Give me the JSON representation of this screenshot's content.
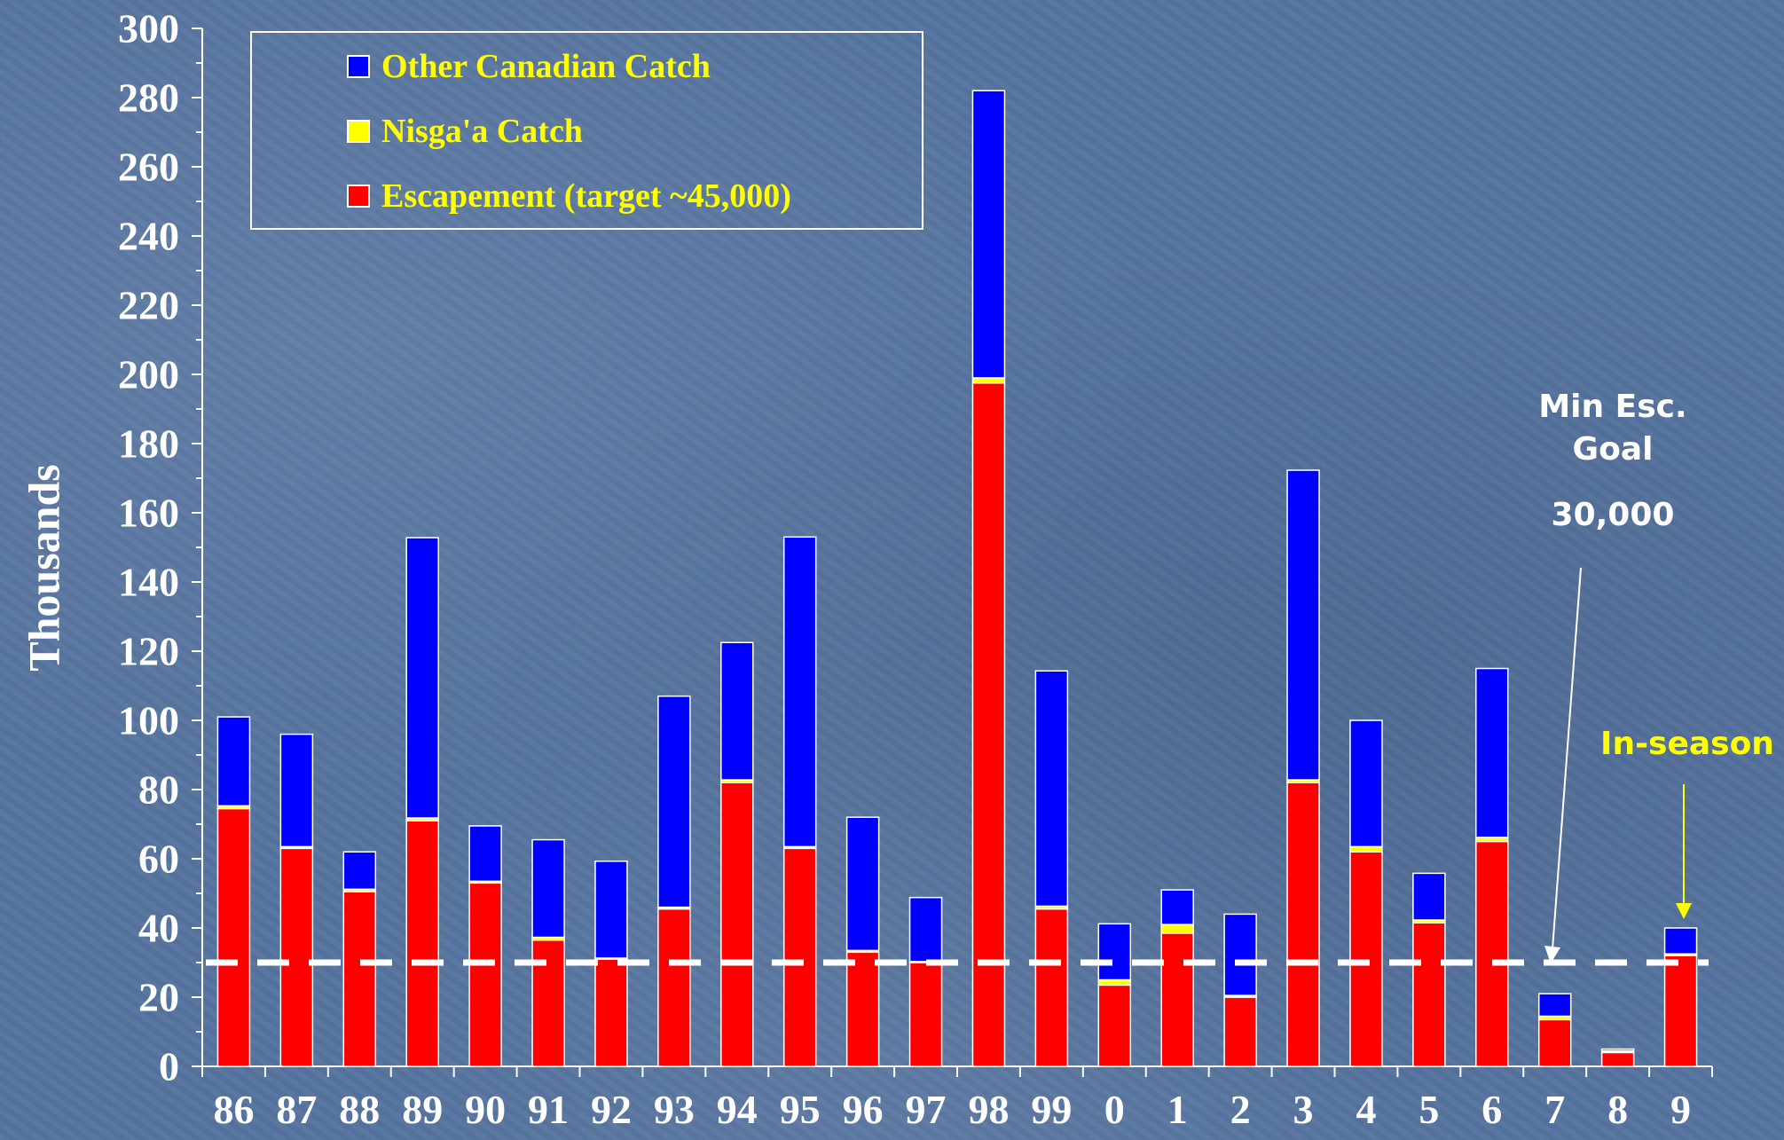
{
  "chart_data": {
    "type": "bar",
    "stacked": true,
    "ylabel": "Thousands",
    "xlabel": "",
    "ylim": [
      0,
      300
    ],
    "y_ticks": [
      "0",
      "20",
      "40",
      "60",
      "80",
      "100",
      "120",
      "140",
      "160",
      "180",
      "200",
      "220",
      "240",
      "260",
      "280",
      "300"
    ],
    "categories": [
      "86",
      "87",
      "88",
      "89",
      "90",
      "91",
      "92",
      "93",
      "94",
      "95",
      "96",
      "97",
      "98",
      "99",
      "0",
      "1",
      "2",
      "3",
      "4",
      "5",
      "6",
      "7",
      "8",
      "9"
    ],
    "series": [
      {
        "name": "Escapement (target ~45,000)",
        "color": "#ff0000",
        "values": [
          74.5,
          63,
          50.5,
          71,
          53,
          36.5,
          31,
          45.5,
          82,
          63,
          33,
          30,
          197.5,
          45.5,
          23.5,
          38.5,
          20,
          82,
          62,
          41.5,
          65,
          13.5,
          4,
          32
        ]
      },
      {
        "name": "Nisga'a Catch",
        "color": "#ffff00",
        "values": [
          0.8,
          0.5,
          0.7,
          0.8,
          0.5,
          0.8,
          0.3,
          0.5,
          0.8,
          0.5,
          0.5,
          0.3,
          1.5,
          0.8,
          1.5,
          2.5,
          0.5,
          0.8,
          1.5,
          0.8,
          1.2,
          1,
          0.5,
          0.5
        ]
      },
      {
        "name": "Other Canadian Catch",
        "color": "#0000ff",
        "values": [
          25.7,
          32.5,
          10.8,
          81,
          16,
          28.2,
          28,
          61,
          39.7,
          89.5,
          38.5,
          18.5,
          83,
          68,
          16.2,
          10,
          23.5,
          89.5,
          36.5,
          13.5,
          48.8,
          6.5,
          0.5,
          7.5
        ]
      }
    ],
    "legend": {
      "placement": "top-left",
      "entries": [
        "Other Canadian Catch",
        "Nisga'a Catch",
        "Escapement (target ~45,000)"
      ]
    },
    "reference_line": {
      "value": 30,
      "style": "dashed",
      "color": "#ffffff"
    },
    "annotations": {
      "min_goal_line1": "Min Esc.",
      "min_goal_line2": "Goal",
      "min_goal_value": "30,000",
      "in_season": "In-season"
    },
    "grid": false
  }
}
